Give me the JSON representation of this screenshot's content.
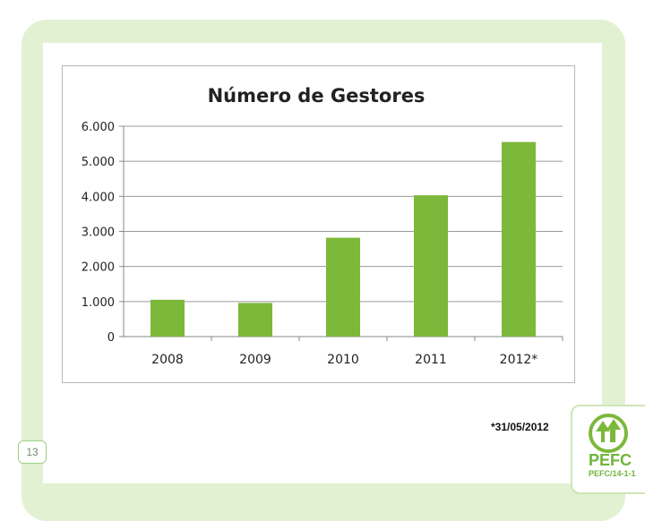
{
  "chart_data": {
    "type": "bar",
    "title": "Número de Gestores",
    "xlabel": "",
    "ylabel": "",
    "categories": [
      "2008",
      "2009",
      "2010",
      "2011",
      "2012*"
    ],
    "values": [
      1050,
      960,
      2820,
      4030,
      5550
    ],
    "ylim": [
      0,
      6000
    ],
    "yticks": [
      0,
      1000,
      2000,
      3000,
      4000,
      5000,
      6000
    ],
    "ytick_labels": [
      "0",
      "1.000",
      "2.000",
      "3.000",
      "4.000",
      "5.000",
      "6.000"
    ],
    "grid": true,
    "legend": "none",
    "bar_color": "#7cb83a"
  },
  "footnote": "*31/05/2012",
  "page_number": "13",
  "logo": {
    "brand": "PEFC",
    "code": "PEFC/14-1-1",
    "icon": "pefc-trees-logo-icon"
  },
  "colors": {
    "frame": "#e3f1d3",
    "accent": "#7cb83a"
  }
}
